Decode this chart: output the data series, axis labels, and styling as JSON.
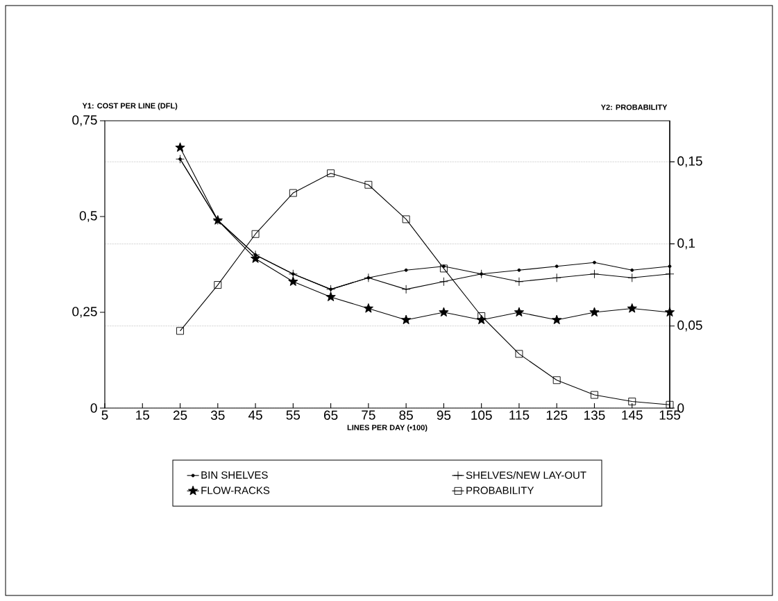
{
  "chart_data": {
    "type": "line",
    "xlabel": "LINES PER DAY (•100)",
    "ylabel": "Y1: COST PER LINE (DFL)",
    "y2label": "Y2: PROBABILITY",
    "x": [
      25,
      35,
      45,
      55,
      65,
      75,
      85,
      95,
      105,
      115,
      125,
      135,
      145,
      155
    ],
    "xlim": [
      5,
      155
    ],
    "xticks": [
      5,
      15,
      25,
      35,
      45,
      55,
      65,
      75,
      85,
      95,
      105,
      115,
      125,
      135,
      145,
      155
    ],
    "ylim": [
      0,
      0.75
    ],
    "yticks": [
      0,
      {
        "value": 0.25,
        "label": "0,25"
      },
      {
        "value": 0.5,
        "label": "0,5"
      },
      {
        "value": 0.75,
        "label": "0,75"
      }
    ],
    "y2lim": [
      0,
      0.175
    ],
    "y2ticks": [
      0,
      {
        "value": 0.05,
        "label": "0,05"
      },
      {
        "value": 0.1,
        "label": "0,1"
      },
      {
        "value": 0.15,
        "label": "0,15"
      }
    ],
    "grid": "y2",
    "legend": "bottom",
    "series": [
      {
        "name": "BIN SHELVES",
        "color": "#000000",
        "marker": "circle",
        "values": [
          0.65,
          0.49,
          0.4,
          0.35,
          0.31,
          0.34,
          0.36,
          0.37,
          0.35,
          0.36,
          0.37,
          0.38,
          0.36,
          0.37
        ]
      },
      {
        "name": "SHELVES/NEW LAY-OUT",
        "color": "#000000",
        "marker": "cross",
        "values": [
          0.65,
          0.49,
          0.4,
          0.35,
          0.31,
          0.34,
          0.31,
          0.33,
          0.35,
          0.33,
          0.34,
          0.35,
          0.34,
          0.35
        ]
      },
      {
        "name": "FLOW-RACKS",
        "color": "#000000",
        "marker": "star",
        "values": [
          0.68,
          0.49,
          0.39,
          0.33,
          0.29,
          0.26,
          0.23,
          0.25,
          0.23,
          0.25,
          0.23,
          0.25,
          0.26,
          0.25
        ]
      },
      {
        "name": "PROBABILITY",
        "color": "#000000",
        "marker": "square",
        "axis": "y2",
        "values": [
          0.047,
          0.075,
          0.106,
          0.131,
          0.143,
          0.136,
          0.115,
          0.085,
          0.056,
          0.033,
          0.017,
          0.008,
          0.004,
          0.002
        ]
      }
    ]
  }
}
